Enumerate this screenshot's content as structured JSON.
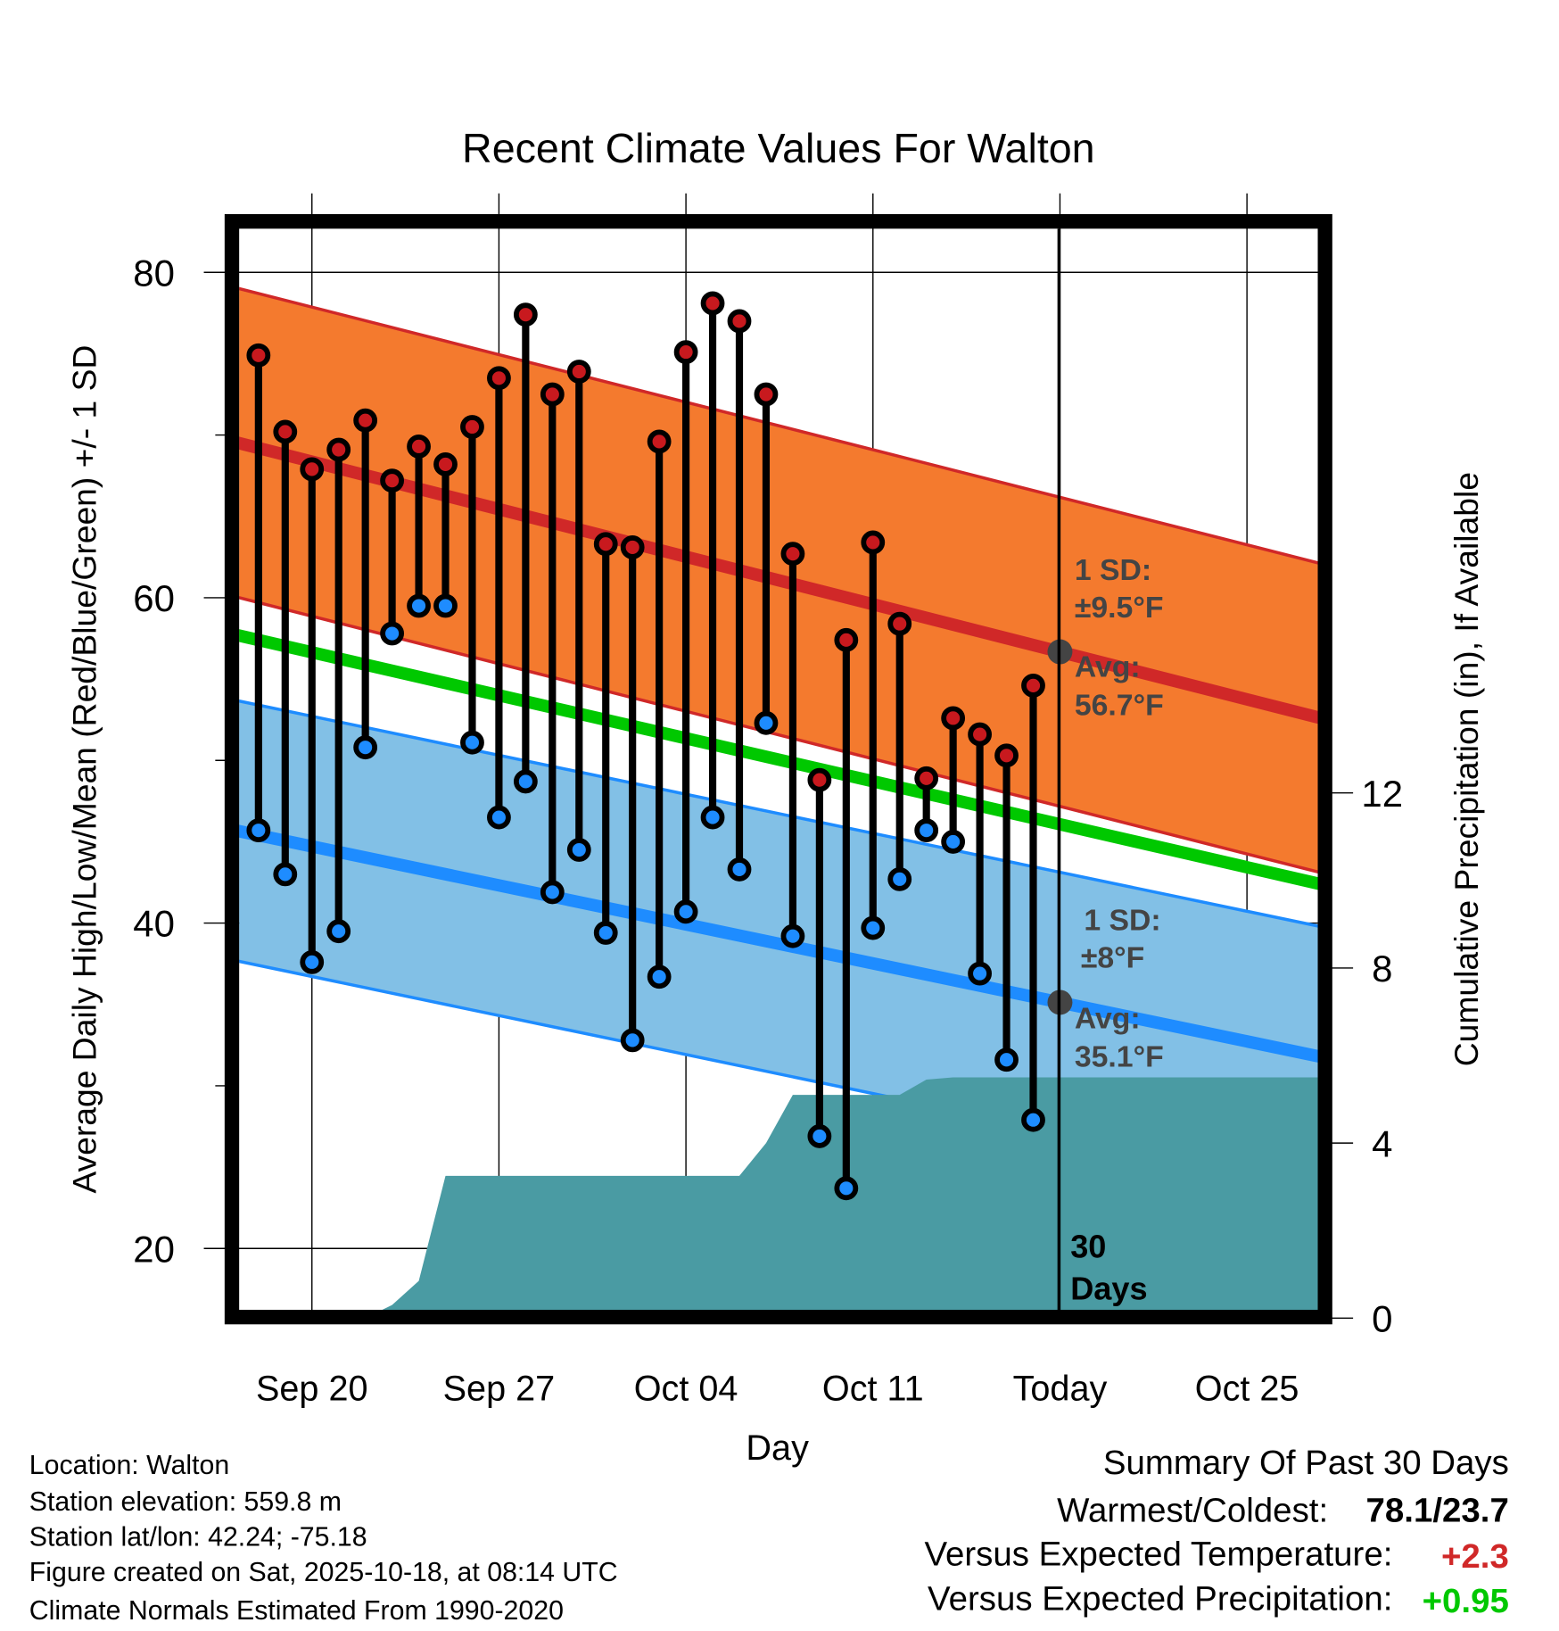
{
  "chart_data": {
    "type": "line",
    "title": "Recent Climate Values For Walton",
    "xlabel": "Day",
    "ylabel": "Average Daily High/Low/Mean (Red/Blue/Green) +/- 1 SD",
    "ylabel_right": "Cumulative Precipitation (in), If Available",
    "ylim": [
      16.2,
      83.5
    ],
    "ylim_right": [
      0,
      24
    ],
    "yticks": [
      "80",
      "60",
      "40",
      "20"
    ],
    "yticks_values": [
      80,
      60,
      40,
      20
    ],
    "yticks_right": [
      "12",
      "8",
      "4",
      "0"
    ],
    "yticks_right_values": [
      12,
      8,
      4,
      0
    ],
    "xticks": [
      "Sep 20",
      "Sep 27",
      "Oct 04",
      "Oct 11",
      "Today",
      "Oct 25"
    ],
    "xticks_day_index": [
      2,
      9,
      16,
      23,
      30,
      37
    ],
    "dates": [
      "Sep 18",
      "Sep 19",
      "Sep 20",
      "Sep 21",
      "Sep 22",
      "Sep 23",
      "Sep 24",
      "Sep 25",
      "Sep 26",
      "Sep 27",
      "Sep 28",
      "Sep 29",
      "Sep 30",
      "Oct 01",
      "Oct 02",
      "Oct 03",
      "Oct 04",
      "Oct 05",
      "Oct 06",
      "Oct 07",
      "Oct 08",
      "Oct 09",
      "Oct 10",
      "Oct 11",
      "Oct 12",
      "Oct 13",
      "Oct 14",
      "Oct 15",
      "Oct 16",
      "Oct 17"
    ],
    "series": [
      {
        "name": "Daily High",
        "color": "#c8191e",
        "values": [
          74.9,
          70.2,
          67.9,
          69.1,
          70.9,
          67.2,
          69.3,
          68.2,
          70.5,
          73.5,
          77.4,
          72.5,
          73.9,
          63.3,
          63.1,
          69.6,
          75.1,
          78.1,
          77.0,
          72.5,
          62.7,
          48.8,
          57.4,
          63.4,
          58.4,
          48.9,
          52.6,
          51.6,
          50.3,
          54.6
        ]
      },
      {
        "name": "Daily Low",
        "color": "#1e8cff",
        "values": [
          45.7,
          43.0,
          37.6,
          39.5,
          50.8,
          57.8,
          59.5,
          59.5,
          51.1,
          46.5,
          48.7,
          41.9,
          44.5,
          39.4,
          32.8,
          36.7,
          40.7,
          46.5,
          43.3,
          52.3,
          39.2,
          26.9,
          23.7,
          39.7,
          42.7,
          45.7,
          45.0,
          36.9,
          31.6,
          27.9
        ]
      },
      {
        "name": "Cumulative Precipitation",
        "color": "#4a9ba3",
        "values": [
          0,
          0,
          0,
          0,
          0,
          0.3,
          0.85,
          3.25,
          3.25,
          3.25,
          3.25,
          3.25,
          3.25,
          3.25,
          3.25,
          3.25,
          3.25,
          3.25,
          3.25,
          4.0,
          5.1,
          5.1,
          5.1,
          5.1,
          5.1,
          5.45,
          5.5,
          5.5,
          5.5,
          5.5
        ]
      }
    ],
    "normals": {
      "day_index": [
        0,
        40
      ],
      "avg_high": [
        69.2,
        52.5
      ],
      "avg_mean": [
        57.4,
        42.3
      ],
      "avg_low": [
        45.4,
        31.7
      ],
      "high_sd": 9.5,
      "low_sd": 8,
      "colors": {
        "high_band": "#f47a2e",
        "high_line": "#d02828",
        "mean_line": "#00c800",
        "low_band": "#82c0e6",
        "low_line": "#1e8cff"
      }
    },
    "annotations": {
      "high_sd_label": "1 SD:",
      "high_sd_value": "±9.5°F",
      "high_avg_label": "Avg:",
      "high_avg_value": "56.7°F",
      "low_sd_label": "1 SD:",
      "low_sd_value": "±8°F",
      "low_avg_label": "Avg:",
      "low_avg_value": "35.1°F",
      "days_count": "30",
      "days_label": "Days"
    }
  },
  "info": {
    "location": "Location: Walton",
    "elevation": "Station elevation: 559.8 m",
    "latlon": "Station lat/lon: 42.24; -75.18",
    "created": "Figure created on Sat, 2025-10-18, at 08:14 UTC",
    "normals": "Climate Normals Estimated From 1990-2020"
  },
  "summary": {
    "title": "Summary Of Past 30 Days",
    "warm_cold_label": "Warmest/Coldest:",
    "warm_cold_value": "78.1/23.7",
    "temp_label": "Versus Expected Temperature:",
    "temp_value": "+2.3",
    "temp_color": "#d02828",
    "precip_label": "Versus Expected Precipitation:",
    "precip_value": "+0.95",
    "precip_color": "#00c800"
  }
}
